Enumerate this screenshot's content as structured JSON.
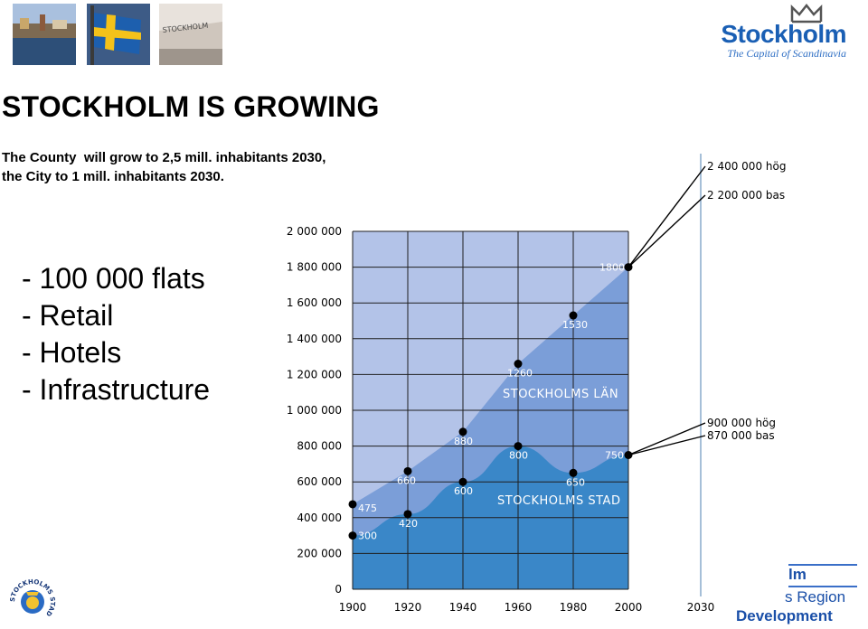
{
  "header": {
    "photos": [
      "city-harbour-photo",
      "swedish-flag-photo",
      "stockholm-sign-photo"
    ],
    "photo_sign_text": "STOCKHOLM",
    "brand_name": "Stockholm",
    "brand_tagline": "The Capital of Scandinavia"
  },
  "title": "STOCKHOLM IS GROWING",
  "subtitle": {
    "line1": "The County  will grow to 2,5 mill. inhabitants 2030,",
    "line2": "the City to 1 mill. inhabitants 2030."
  },
  "bullets": [
    "- 100 000 flats",
    "- Retail",
    "- Hotels",
    "- Infrastructure"
  ],
  "chart_data": {
    "type": "area",
    "x": [
      1900,
      1920,
      1940,
      1960,
      1980,
      2000
    ],
    "x_ticks": [
      "1900",
      "1920",
      "1940",
      "1960",
      "1980",
      "2000",
      "2030"
    ],
    "y_ticks": [
      "0",
      "200 000",
      "400 000",
      "600 000",
      "800 000",
      "1 000 000",
      "1 200 000",
      "1 400 000",
      "1 600 000",
      "1 800 000",
      "2 000 000"
    ],
    "ylim": [
      0,
      2000000
    ],
    "xlim": [
      1900,
      2030
    ],
    "grid": true,
    "series": [
      {
        "name": "STOCKHOLMS LÄN",
        "values": [
          475000,
          660000,
          880000,
          1260000,
          1530000,
          1800000
        ],
        "labels": [
          "475",
          "660",
          "880",
          "1260",
          "1530",
          "1800"
        ],
        "color": "#7b9ed8"
      },
      {
        "name": "STOCKHOLMS STAD",
        "values": [
          300000,
          420000,
          600000,
          800000,
          650000,
          750000
        ],
        "labels": [
          "300",
          "420",
          "600",
          "800",
          "650",
          "750"
        ],
        "color": "#3a87c8"
      }
    ],
    "projections": {
      "county": [
        "2 400 000 hög",
        "2 200 000 bas"
      ],
      "city": [
        "900 000 hög",
        "870 000 bas"
      ]
    },
    "colors": {
      "background": "#b3c3e8",
      "grid": "#1f1f1f",
      "marker": "#000000",
      "axis_2030": "#88aacc"
    }
  },
  "footer": {
    "seal_text": "STOCKHOLMS STAD",
    "logo_lines": [
      "lm",
      "s Region",
      "Development"
    ]
  }
}
